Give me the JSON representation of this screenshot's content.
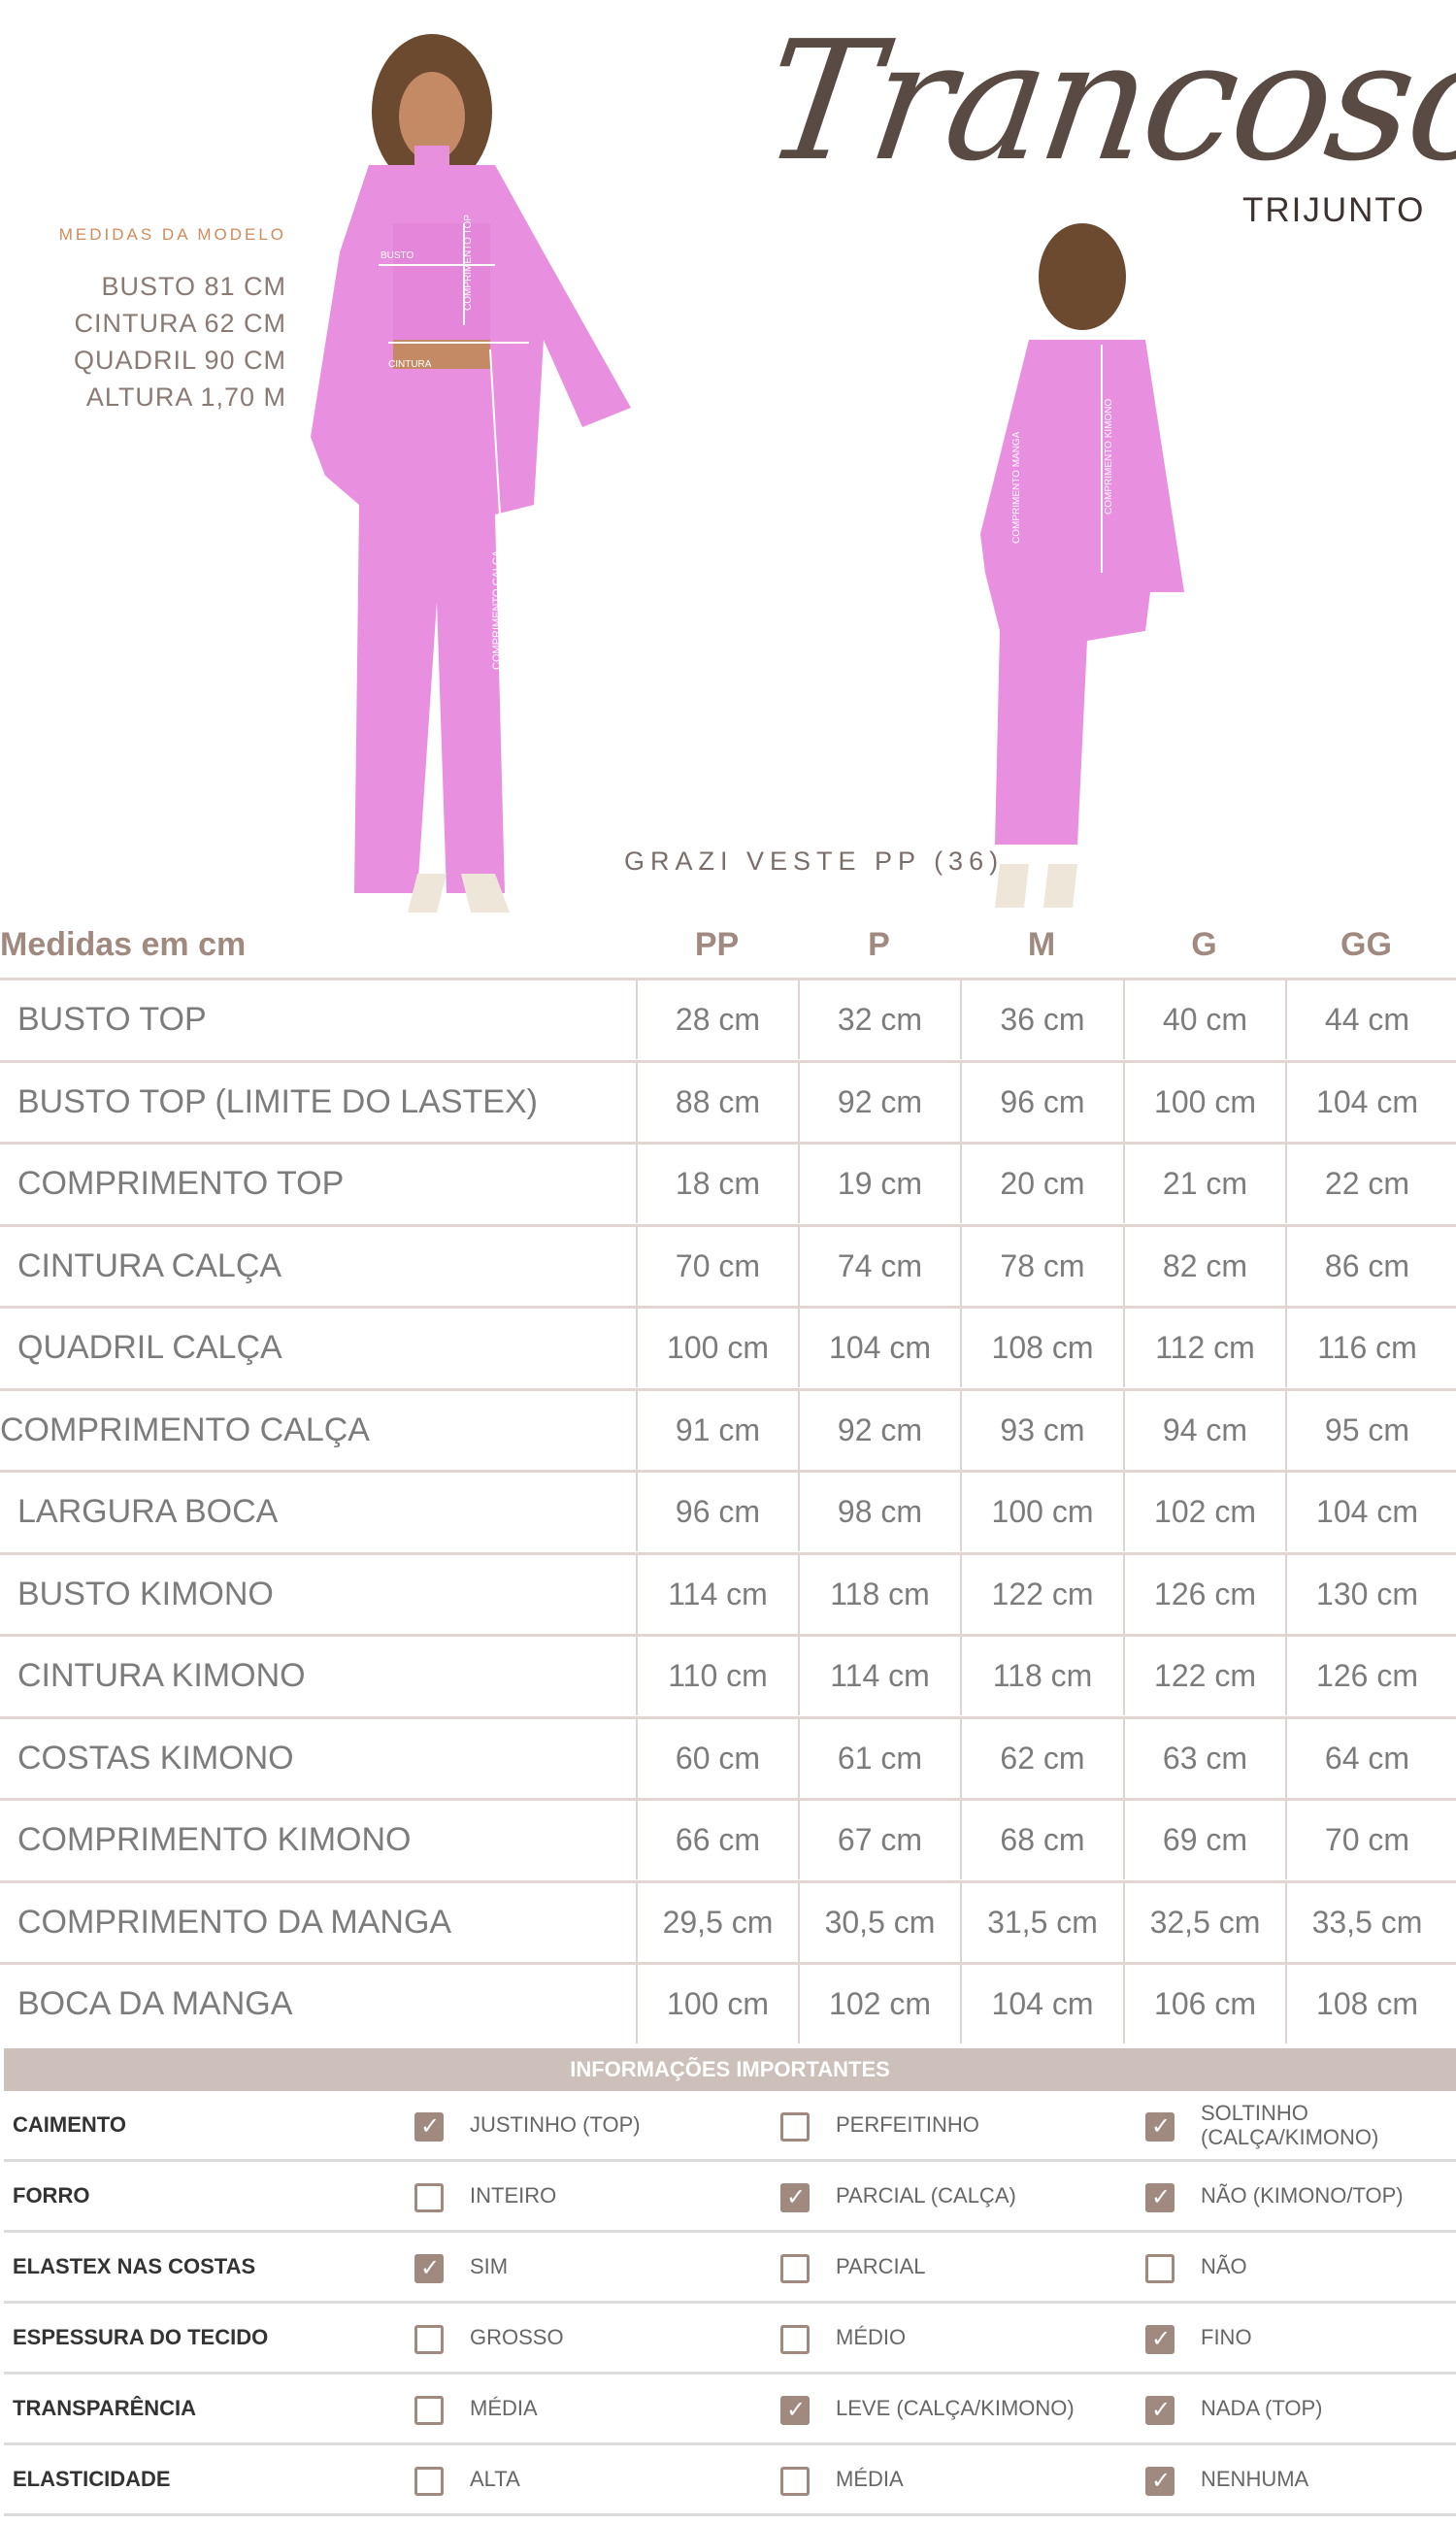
{
  "brand": {
    "logo_script": "Trancoso",
    "name": "TRIJUNTO"
  },
  "model": {
    "title": "MEDIDAS DA MODELO",
    "measures": [
      "BUSTO 81 CM",
      "CINTURA 62 CM",
      "QUADRIL 90 CM",
      "ALTURA 1,70 M"
    ],
    "wears": "GRAZI VESTE PP (36)"
  },
  "photo_labels": {
    "front": [
      "BUSTO",
      "COMPRIMENTO TOP",
      "CINTURA",
      "COMPRIMENTO CALÇA"
    ],
    "back": [
      "COMPRIMENTO MANGA",
      "COMPRIMENTO KIMONO"
    ]
  },
  "size_table": {
    "title": "Medidas em cm",
    "sizes": [
      "PP",
      "P",
      "M",
      "G",
      "GG"
    ],
    "rows": [
      {
        "label": "BUSTO TOP",
        "values": [
          "28 cm",
          "32 cm",
          "36 cm",
          "40 cm",
          "44 cm"
        ]
      },
      {
        "label": "BUSTO TOP (LIMITE DO LASTEX)",
        "values": [
          "88 cm",
          "92 cm",
          "96 cm",
          "100 cm",
          "104 cm"
        ]
      },
      {
        "label": "COMPRIMENTO TOP",
        "values": [
          "18 cm",
          "19 cm",
          "20 cm",
          "21 cm",
          "22 cm"
        ]
      },
      {
        "label": "CINTURA CALÇA",
        "values": [
          "70 cm",
          "74 cm",
          "78 cm",
          "82 cm",
          "86 cm"
        ]
      },
      {
        "label": "QUADRIL CALÇA",
        "values": [
          "100 cm",
          "104 cm",
          "108 cm",
          "112 cm",
          "116 cm"
        ]
      },
      {
        "label": "COMPRIMENTO CALÇA",
        "values": [
          "91 cm",
          "92 cm",
          "93 cm",
          "94 cm",
          "95 cm"
        ]
      },
      {
        "label": "LARGURA BOCA",
        "values": [
          "96 cm",
          "98 cm",
          "100 cm",
          "102 cm",
          "104 cm"
        ]
      },
      {
        "label": "BUSTO KIMONO",
        "values": [
          "114 cm",
          "118 cm",
          "122 cm",
          "126 cm",
          "130 cm"
        ]
      },
      {
        "label": "CINTURA KIMONO",
        "values": [
          "110 cm",
          "114 cm",
          "118 cm",
          "122 cm",
          "126 cm"
        ]
      },
      {
        "label": "COSTAS KIMONO",
        "values": [
          "60 cm",
          "61 cm",
          "62 cm",
          "63 cm",
          "64 cm"
        ]
      },
      {
        "label": "COMPRIMENTO KIMONO",
        "values": [
          "66 cm",
          "67 cm",
          "68 cm",
          "69 cm",
          "70 cm"
        ]
      },
      {
        "label": "COMPRIMENTO DA MANGA",
        "values": [
          "29,5 cm",
          "30,5 cm",
          "31,5 cm",
          "32,5 cm",
          "33,5 cm"
        ]
      },
      {
        "label": "BOCA DA MANGA",
        "values": [
          "100 cm",
          "102 cm",
          "104 cm",
          "106 cm",
          "108 cm"
        ]
      }
    ]
  },
  "info": {
    "title": "INFORMAÇÕES IMPORTANTES",
    "checkbox_color": "#a08a80",
    "rows": [
      {
        "label": "CAIMENTO",
        "options": [
          {
            "text": "JUSTINHO (TOP)",
            "checked": true
          },
          {
            "text": "PERFEITINHO",
            "checked": false
          },
          {
            "text": "SOLTINHO (CALÇA/KIMONO)",
            "checked": true
          }
        ]
      },
      {
        "label": "FORRO",
        "options": [
          {
            "text": "INTEIRO",
            "checked": false
          },
          {
            "text": "PARCIAL (CALÇA)",
            "checked": true
          },
          {
            "text": "NÃO (KIMONO/TOP)",
            "checked": true
          }
        ]
      },
      {
        "label": "ELASTEX NAS COSTAS",
        "options": [
          {
            "text": "SIM",
            "checked": true
          },
          {
            "text": "PARCIAL",
            "checked": false
          },
          {
            "text": "NÃO",
            "checked": false
          }
        ]
      },
      {
        "label": "ESPESSURA DO TECIDO",
        "options": [
          {
            "text": "GROSSO",
            "checked": false
          },
          {
            "text": "MÉDIO",
            "checked": false
          },
          {
            "text": "FINO",
            "checked": true
          }
        ]
      },
      {
        "label": "TRANSPARÊNCIA",
        "options": [
          {
            "text": "MÉDIA",
            "checked": false
          },
          {
            "text": "LEVE (CALÇA/KIMONO)",
            "checked": true
          },
          {
            "text": "NADA (TOP)",
            "checked": true
          }
        ]
      },
      {
        "label": "ELASTICIDADE",
        "options": [
          {
            "text": "ALTA",
            "checked": false
          },
          {
            "text": "MÉDIA",
            "checked": false
          },
          {
            "text": "NENHUMA",
            "checked": true
          }
        ]
      }
    ]
  }
}
